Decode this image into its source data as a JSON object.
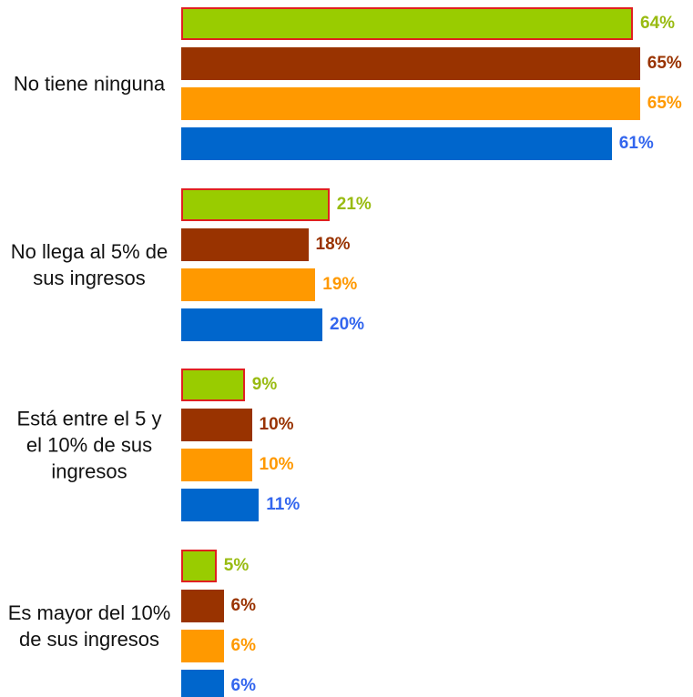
{
  "chart_data": {
    "type": "bar",
    "orientation": "horizontal",
    "categories": [
      "No tiene ninguna",
      "No llega al 5% de sus ingresos",
      "Está entre el 5 y el 10% de sus ingresos",
      "Es mayor del 10% de sus ingresos"
    ],
    "series": [
      {
        "color": "#99cc00",
        "label_color": "#99bb11",
        "outline": "#e02020",
        "values": [
          64,
          21,
          9,
          5
        ],
        "value_labels": [
          "64%",
          "21%",
          "9%",
          "5%"
        ]
      },
      {
        "color": "#993300",
        "label_color": "#993300",
        "values": [
          65,
          18,
          10,
          6
        ],
        "value_labels": [
          "65%",
          "18%",
          "10%",
          "6%"
        ]
      },
      {
        "color": "#ff9900",
        "label_color": "#ff9900",
        "values": [
          65,
          19,
          10,
          6
        ],
        "value_labels": [
          "65%",
          "19%",
          "10%",
          "6%"
        ]
      },
      {
        "color": "#0066cc",
        "label_color": "#3366ee",
        "values": [
          61,
          20,
          11,
          6
        ],
        "value_labels": [
          "61%",
          "20%",
          "11%",
          "6%"
        ]
      }
    ],
    "xlim": [
      0,
      100
    ]
  }
}
